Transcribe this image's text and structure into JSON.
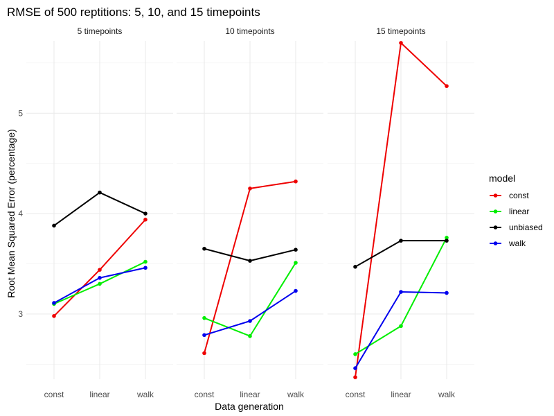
{
  "chart_data": {
    "type": "line",
    "title": "RMSE of 500 reptitions: 5, 10, and 15 timepoints",
    "xlabel": "Data generation",
    "ylabel": "Root Mean Squared Error (percentage)",
    "categories": [
      "const",
      "linear",
      "walk"
    ],
    "y_ticks": [
      3,
      4,
      5
    ],
    "ylim": [
      2.35,
      5.72
    ],
    "grid": true,
    "legend": {
      "title": "model",
      "position": "right"
    },
    "series_colors": {
      "const": "#ee0000",
      "linear": "#00ee00",
      "unbiased": "#000000",
      "walk": "#0000ee"
    },
    "panels": [
      {
        "label": "5 timepoints",
        "series": [
          {
            "name": "const",
            "values": [
              2.98,
              3.44,
              3.94
            ]
          },
          {
            "name": "linear",
            "values": [
              3.1,
              3.3,
              3.52
            ]
          },
          {
            "name": "unbiased",
            "values": [
              3.88,
              4.21,
              4.0
            ]
          },
          {
            "name": "walk",
            "values": [
              3.11,
              3.36,
              3.46
            ]
          }
        ]
      },
      {
        "label": "10 timepoints",
        "series": [
          {
            "name": "const",
            "values": [
              2.61,
              4.25,
              4.32
            ]
          },
          {
            "name": "linear",
            "values": [
              2.96,
              2.78,
              3.51
            ]
          },
          {
            "name": "unbiased",
            "values": [
              3.65,
              3.53,
              3.64
            ]
          },
          {
            "name": "walk",
            "values": [
              2.79,
              2.93,
              3.23
            ]
          }
        ]
      },
      {
        "label": "15 timepoints",
        "series": [
          {
            "name": "const",
            "values": [
              2.37,
              5.7,
              5.27
            ]
          },
          {
            "name": "linear",
            "values": [
              2.6,
              2.88,
              3.76
            ]
          },
          {
            "name": "unbiased",
            "values": [
              3.47,
              3.73,
              3.73
            ]
          },
          {
            "name": "walk",
            "values": [
              2.46,
              3.22,
              3.21
            ]
          }
        ]
      }
    ]
  }
}
